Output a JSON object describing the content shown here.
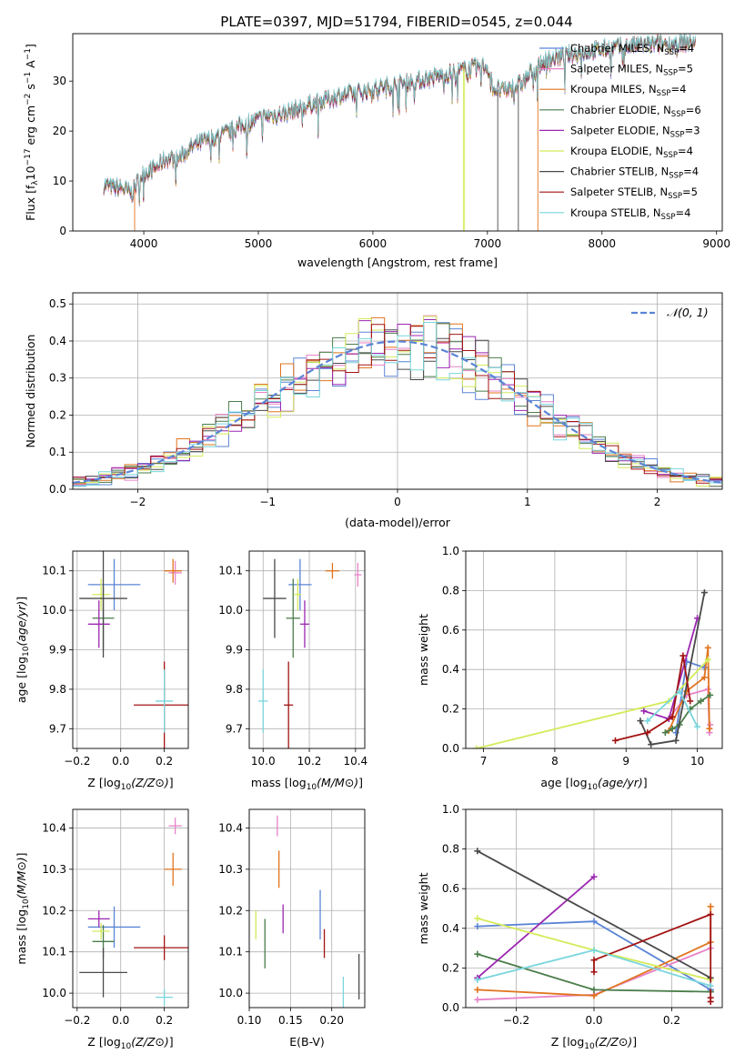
{
  "figure_title": "PLATE=0397, MJD=51794, FIBERID=0545, z=0.044",
  "colors": {
    "Chabrier MILES": "#5b84d6",
    "Salpeter MILES": "#e882c8",
    "Kroupa MILES": "#e0741e",
    "Chabrier ELODIE": "#4a7d4a",
    "Salpeter ELODIE": "#9b27b0",
    "Kroupa ELODIE": "#d4eb5a",
    "Chabrier STELIB": "#4a4a4a",
    "Salpeter STELIB": "#a31313",
    "Kroupa STELIB": "#79d6dc"
  },
  "chart_data": [
    {
      "id": "spectrum",
      "type": "line",
      "xlabel": "wavelength [Angstrom, rest frame]",
      "ylabel_parts": [
        "Flux [f",
        "λ",
        "10",
        "−17",
        " erg cm",
        "−2",
        " s",
        "−1",
        " A",
        "−1",
        "]"
      ],
      "xlim": [
        3380,
        9050
      ],
      "ylim": [
        0,
        39.5
      ],
      "xticks": [
        4000,
        5000,
        6000,
        7000,
        8000,
        9000
      ],
      "yticks": [
        0,
        10,
        20,
        30
      ],
      "legend_position": "upper right",
      "legend": [
        {
          "name": "Chabrier MILES",
          "label": "Chabrier MILES, N",
          "sub": "SSP",
          "suffix": "=4"
        },
        {
          "name": "Salpeter MILES",
          "label": "Salpeter MILES, N",
          "sub": "SSP",
          "suffix": "=5"
        },
        {
          "name": "Kroupa MILES",
          "label": "Kroupa MILES, N",
          "sub": "SSP",
          "suffix": "=4"
        },
        {
          "name": "Chabrier ELODIE",
          "label": "Chabrier ELODIE, N",
          "sub": "SSP",
          "suffix": "=6"
        },
        {
          "name": "Salpeter ELODIE",
          "label": "Salpeter ELODIE, N",
          "sub": "SSP",
          "suffix": "=3"
        },
        {
          "name": "Kroupa ELODIE",
          "label": "Kroupa ELODIE, N",
          "sub": "SSP",
          "suffix": "=4"
        },
        {
          "name": "Chabrier STELIB",
          "label": "Chabrier STELIB, N",
          "sub": "SSP",
          "suffix": "=4"
        },
        {
          "name": "Salpeter STELIB",
          "label": "Salpeter STELIB, N",
          "sub": "SSP",
          "suffix": "=5"
        },
        {
          "name": "Kroupa STELIB",
          "label": "Kroupa STELIB, N",
          "sub": "SSP",
          "suffix": "=4"
        }
      ],
      "continuum": [
        [
          3650,
          9.2
        ],
        [
          3700,
          8.8
        ],
        [
          3800,
          8.6
        ],
        [
          3900,
          7.5
        ],
        [
          3950,
          10.2
        ],
        [
          4000,
          11.6
        ],
        [
          4100,
          12.5
        ],
        [
          4200,
          14.6
        ],
        [
          4300,
          14.3
        ],
        [
          4400,
          16.6
        ],
        [
          4500,
          17.6
        ],
        [
          4600,
          18.6
        ],
        [
          4700,
          19.3
        ],
        [
          4800,
          20.4
        ],
        [
          4900,
          21.6
        ],
        [
          5000,
          22.3
        ],
        [
          5100,
          23.1
        ],
        [
          5200,
          23.4
        ],
        [
          5300,
          24.1
        ],
        [
          5400,
          24.9
        ],
        [
          5500,
          25.6
        ],
        [
          5600,
          26.3
        ],
        [
          5700,
          27.0
        ],
        [
          5800,
          27.4
        ],
        [
          5900,
          27.8
        ],
        [
          6000,
          28.3
        ],
        [
          6100,
          28.9
        ],
        [
          6200,
          29.2
        ],
        [
          6300,
          29.8
        ],
        [
          6400,
          30.1
        ],
        [
          6500,
          30.6
        ],
        [
          6600,
          31.2
        ],
        [
          6700,
          31.6
        ],
        [
          6800,
          32.2
        ],
        [
          6900,
          32.6
        ],
        [
          7000,
          33.0
        ],
        [
          7050,
          28.5
        ],
        [
          7150,
          28.0
        ],
        [
          7300,
          29.5
        ],
        [
          7400,
          32.2
        ],
        [
          7500,
          34.0
        ],
        [
          7700,
          35.2
        ],
        [
          7900,
          36.0
        ],
        [
          8100,
          36.6
        ],
        [
          8300,
          37.1
        ],
        [
          8500,
          37.4
        ],
        [
          8700,
          37.6
        ],
        [
          8820,
          37.8
        ]
      ],
      "gaps": [
        {
          "name": "Chabrier STELIB",
          "x": 7090,
          "drop_to": 0
        },
        {
          "name": "Chabrier STELIB",
          "x": 7270,
          "drop_to": 0
        },
        {
          "name": "Kroupa MILES",
          "x": 3920,
          "drop_to": 0
        },
        {
          "name": "Kroupa ELODIE",
          "x": 6800,
          "drop_to": 0
        },
        {
          "name": "Kroupa MILES",
          "x": 7440,
          "drop_to": 0
        },
        {
          "name": "Kroupa ELODIE",
          "x": 6790,
          "drop_to": 0
        }
      ]
    },
    {
      "id": "residuals",
      "type": "line",
      "xlabel": "(data-model)/error",
      "ylabel": "Normed distribution",
      "xlim": [
        -2.5,
        2.5
      ],
      "ylim": [
        0,
        0.53
      ],
      "xticks": [
        -2,
        -1,
        0,
        1,
        2
      ],
      "xtick_labels": [
        "−2",
        "−1",
        "0",
        "1",
        "2"
      ],
      "yticks": [
        0,
        0.1,
        0.2,
        0.3,
        0.4,
        0.5
      ],
      "ytick_labels": [
        "0.0",
        "0.1",
        "0.2",
        "0.3",
        "0.4",
        "0.5"
      ],
      "grid": true,
      "legend_position": "upper right",
      "normal_label": "𝒩(0, 1)",
      "normal_color": "#5b84d6",
      "bin_width": 0.1
    },
    {
      "id": "age_vs_Z",
      "type": "scatter",
      "xlabel": "Z [log10(Z/Z⊙)]",
      "ylabel": "age [log10(age/yr)]",
      "xlim": [
        -0.22,
        0.31
      ],
      "ylim": [
        9.65,
        10.15
      ],
      "xticks": [
        -0.2,
        0.0,
        0.2
      ],
      "xtick_labels": [
        "−0.2",
        "0.0",
        "0.2"
      ],
      "yticks": [
        9.7,
        9.8,
        9.9,
        10.0,
        10.1
      ],
      "ytick_labels": [
        "9.7",
        "9.8",
        "9.9",
        "10.0",
        "10.1"
      ],
      "grid": true,
      "points": [
        {
          "name": "Chabrier MILES",
          "x": -0.03,
          "y": 10.065,
          "xerr": 0.12,
          "yerr": 0.065
        },
        {
          "name": "Salpeter MILES",
          "x": 0.25,
          "y": 10.095,
          "xerr": 0.03,
          "yerr": 0.03
        },
        {
          "name": "Kroupa MILES",
          "x": 0.24,
          "y": 10.1,
          "xerr": 0.04,
          "yerr": 0.03
        },
        {
          "name": "Chabrier ELODIE",
          "x": -0.08,
          "y": 9.98,
          "xerr": 0.05,
          "yerr": 0.08
        },
        {
          "name": "Salpeter ELODIE",
          "x": -0.1,
          "y": 9.965,
          "xerr": 0.05,
          "yerr": 0.06
        },
        {
          "name": "Kroupa ELODIE",
          "x": -0.09,
          "y": 10.04,
          "xerr": 0.04,
          "yerr": 0.04
        },
        {
          "name": "Chabrier STELIB",
          "x": -0.08,
          "y": 10.03,
          "xerr": 0.11,
          "yerr": 0.15
        },
        {
          "name": "Salpeter STELIB",
          "x": 0.2,
          "y": 9.76,
          "xerr": 0.14,
          "yerr": 0.11
        },
        {
          "name": "Kroupa STELIB",
          "x": 0.2,
          "y": 9.77,
          "xerr": 0.04,
          "yerr": 0.08
        }
      ]
    },
    {
      "id": "age_vs_mass",
      "type": "scatter",
      "xlabel": "mass [log10(M/M⊙)]",
      "ylabel": "",
      "xlim": [
        9.94,
        10.44
      ],
      "ylim": [
        9.65,
        10.15
      ],
      "xticks": [
        10.0,
        10.2,
        10.4
      ],
      "xtick_labels": [
        "10.0",
        "10.2",
        "10.4"
      ],
      "yticks": [
        9.7,
        9.8,
        9.9,
        10.0,
        10.1
      ],
      "ytick_labels": [
        "9.7",
        "9.8",
        "9.9",
        "10.0",
        "10.1"
      ],
      "grid": true,
      "points": [
        {
          "name": "Chabrier MILES",
          "x": 10.16,
          "y": 10.065,
          "xerr": 0.05,
          "yerr": 0.065
        },
        {
          "name": "Salpeter MILES",
          "x": 10.41,
          "y": 10.09,
          "xerr": 0.015,
          "yerr": 0.03
        },
        {
          "name": "Kroupa MILES",
          "x": 10.3,
          "y": 10.1,
          "xerr": 0.03,
          "yerr": 0.02
        },
        {
          "name": "Chabrier ELODIE",
          "x": 10.13,
          "y": 9.98,
          "xerr": 0.03,
          "yerr": 0.1
        },
        {
          "name": "Salpeter ELODIE",
          "x": 10.18,
          "y": 9.965,
          "xerr": 0.02,
          "yerr": 0.06
        },
        {
          "name": "Kroupa ELODIE",
          "x": 10.15,
          "y": 10.04,
          "xerr": 0.015,
          "yerr": 0.04
        },
        {
          "name": "Chabrier STELIB",
          "x": 10.05,
          "y": 10.03,
          "xerr": 0.05,
          "yerr": 0.1
        },
        {
          "name": "Salpeter STELIB",
          "x": 10.11,
          "y": 9.76,
          "xerr": 0.02,
          "yerr": 0.11
        },
        {
          "name": "Kroupa STELIB",
          "x": 10.0,
          "y": 9.77,
          "xerr": 0.02,
          "yerr": 0.08
        }
      ]
    },
    {
      "id": "weight_vs_age",
      "type": "line",
      "xlabel": "age [log10(age/yr)]",
      "ylabel": "mass weight",
      "xlim": [
        6.75,
        10.35
      ],
      "ylim": [
        0,
        1.0
      ],
      "xticks": [
        7,
        8,
        9,
        10
      ],
      "yticks": [
        0,
        0.2,
        0.4,
        0.6,
        0.8,
        1.0
      ],
      "ytick_labels": [
        "0.0",
        "0.2",
        "0.4",
        "0.6",
        "0.8",
        "1.0"
      ],
      "grid": true,
      "series": [
        {
          "name": "Chabrier MILES",
          "x": [
            9.7,
            9.85,
            10.1
          ],
          "y": [
            0.08,
            0.44,
            0.41
          ]
        },
        {
          "name": "Salpeter MILES",
          "x": [
            9.6,
            9.85,
            10.15,
            10.17,
            10.18
          ],
          "y": [
            0.15,
            0.27,
            0.3,
            0.08,
            0.12
          ]
        },
        {
          "name": "Kroupa MILES",
          "x": [
            9.6,
            9.85,
            10.1,
            10.15,
            10.17
          ],
          "y": [
            0.09,
            0.29,
            0.36,
            0.51,
            0.1
          ]
        },
        {
          "name": "Chabrier ELODIE",
          "x": [
            9.55,
            9.65,
            9.75,
            9.9,
            10.05,
            10.18
          ],
          "y": [
            0.08,
            0.1,
            0.12,
            0.2,
            0.24,
            0.27
          ]
        },
        {
          "name": "Salpeter ELODIE",
          "x": [
            9.25,
            9.6,
            10.0
          ],
          "y": [
            0.19,
            0.15,
            0.66
          ]
        },
        {
          "name": "Kroupa ELODIE",
          "x": [
            6.9,
            9.6,
            10.15
          ],
          "y": [
            0.0,
            0.24,
            0.45
          ]
        },
        {
          "name": "Chabrier STELIB",
          "x": [
            9.2,
            9.35,
            9.7,
            10.1
          ],
          "y": [
            0.14,
            0.02,
            0.04,
            0.79
          ]
        },
        {
          "name": "Salpeter STELIB",
          "x": [
            8.85,
            9.3,
            9.65,
            9.8,
            9.9
          ],
          "y": [
            0.04,
            0.08,
            0.16,
            0.47,
            0.24
          ]
        },
        {
          "name": "Kroupa STELIB",
          "x": [
            9.3,
            9.75,
            10.0
          ],
          "y": [
            0.14,
            0.29,
            0.11
          ]
        }
      ]
    },
    {
      "id": "mass_vs_Z",
      "type": "scatter",
      "xlabel": "Z [log10(Z/Z⊙)]",
      "ylabel": "mass [log10(M/M⊙)]",
      "xlim": [
        -0.22,
        0.31
      ],
      "ylim": [
        9.965,
        10.445
      ],
      "xticks": [
        -0.2,
        0.0,
        0.2
      ],
      "xtick_labels": [
        "−0.2",
        "0.0",
        "0.2"
      ],
      "yticks": [
        10.0,
        10.1,
        10.2,
        10.3,
        10.4
      ],
      "ytick_labels": [
        "10.0",
        "10.1",
        "10.2",
        "10.3",
        "10.4"
      ],
      "grid": true,
      "points": [
        {
          "name": "Chabrier MILES",
          "x": -0.03,
          "y": 10.16,
          "xerr": 0.12,
          "yerr": 0.05
        },
        {
          "name": "Salpeter MILES",
          "x": 0.25,
          "y": 10.405,
          "xerr": 0.03,
          "yerr": 0.02
        },
        {
          "name": "Kroupa MILES",
          "x": 0.24,
          "y": 10.3,
          "xerr": 0.04,
          "yerr": 0.04
        },
        {
          "name": "Chabrier ELODIE",
          "x": -0.08,
          "y": 10.125,
          "xerr": 0.05,
          "yerr": 0.04
        },
        {
          "name": "Salpeter ELODIE",
          "x": -0.1,
          "y": 10.18,
          "xerr": 0.05,
          "yerr": 0.02
        },
        {
          "name": "Kroupa ELODIE",
          "x": -0.09,
          "y": 10.15,
          "xerr": 0.04,
          "yerr": 0.02
        },
        {
          "name": "Chabrier STELIB",
          "x": -0.08,
          "y": 10.05,
          "xerr": 0.11,
          "yerr": 0.06
        },
        {
          "name": "Salpeter STELIB",
          "x": 0.2,
          "y": 10.11,
          "xerr": 0.14,
          "yerr": 0.03
        },
        {
          "name": "Kroupa STELIB",
          "x": 0.2,
          "y": 9.99,
          "xerr": 0.04,
          "yerr": 0.02
        }
      ]
    },
    {
      "id": "mass_vs_ebv",
      "type": "scatter",
      "xlabel": "E(B-V)",
      "ylabel": "",
      "xlim": [
        0.1,
        0.24
      ],
      "ylim": [
        9.965,
        10.445
      ],
      "xticks": [
        0.1,
        0.15,
        0.2
      ],
      "xtick_labels": [
        "0.10",
        "0.15",
        "0.20"
      ],
      "yticks": [
        10.0,
        10.1,
        10.2,
        10.3,
        10.4
      ],
      "ytick_labels": [
        "10.0",
        "10.1",
        "10.2",
        "10.3",
        "10.4"
      ],
      "grid": true,
      "points": [
        {
          "name": "Chabrier MILES",
          "x": 0.186,
          "y": 10.19,
          "xerr": 0,
          "yerr": 0.06
        },
        {
          "name": "Salpeter MILES",
          "x": 0.134,
          "y": 10.405,
          "xerr": 0,
          "yerr": 0.025
        },
        {
          "name": "Kroupa MILES",
          "x": 0.136,
          "y": 10.3,
          "xerr": 0,
          "yerr": 0.045
        },
        {
          "name": "Chabrier ELODIE",
          "x": 0.119,
          "y": 10.12,
          "xerr": 0,
          "yerr": 0.06
        },
        {
          "name": "Salpeter ELODIE",
          "x": 0.141,
          "y": 10.18,
          "xerr": 0,
          "yerr": 0.035
        },
        {
          "name": "Kroupa ELODIE",
          "x": 0.108,
          "y": 10.165,
          "xerr": 0,
          "yerr": 0.035
        },
        {
          "name": "Chabrier STELIB",
          "x": 0.233,
          "y": 10.04,
          "xerr": 0,
          "yerr": 0.055
        },
        {
          "name": "Salpeter STELIB",
          "x": 0.191,
          "y": 10.12,
          "xerr": 0,
          "yerr": 0.035
        },
        {
          "name": "Kroupa STELIB",
          "x": 0.214,
          "y": 10.0,
          "xerr": 0,
          "yerr": 0.04
        }
      ]
    },
    {
      "id": "weight_vs_Z",
      "type": "line",
      "xlabel": "Z [log10(Z/Z⊙)]",
      "ylabel": "mass weight",
      "xlim": [
        -0.33,
        0.33
      ],
      "ylim": [
        0,
        1.0
      ],
      "xticks": [
        -0.2,
        0.0,
        0.2
      ],
      "xtick_labels": [
        "−0.2",
        "0.0",
        "0.2"
      ],
      "yticks": [
        0,
        0.2,
        0.4,
        0.6,
        0.8,
        1.0
      ],
      "ytick_labels": [
        "0.0",
        "0.2",
        "0.4",
        "0.6",
        "0.8",
        "1.0"
      ],
      "grid": true,
      "series": [
        {
          "name": "Chabrier MILES",
          "x": [
            -0.3,
            0.0,
            0.3,
            0.3
          ],
          "y": [
            0.41,
            0.435,
            0.09,
            0.08
          ]
        },
        {
          "name": "Salpeter MILES",
          "x": [
            -0.3,
            0.0,
            0.3
          ],
          "y": [
            0.04,
            0.065,
            0.3
          ]
        },
        {
          "name": "Kroupa MILES",
          "x": [
            -0.3,
            0.0,
            0.3,
            0.3
          ],
          "y": [
            0.09,
            0.06,
            0.33,
            0.51
          ]
        },
        {
          "name": "Chabrier ELODIE",
          "x": [
            -0.3,
            0.0,
            0.3,
            0.3
          ],
          "y": [
            0.27,
            0.09,
            0.08,
            0.08
          ]
        },
        {
          "name": "Salpeter ELODIE",
          "x": [
            -0.3,
            0.0
          ],
          "y": [
            0.15,
            0.66
          ]
        },
        {
          "name": "Kroupa ELODIE",
          "x": [
            -0.3,
            0.0,
            0.3
          ],
          "y": [
            0.45,
            0.29,
            0.14
          ]
        },
        {
          "name": "Chabrier STELIB",
          "x": [
            -0.3,
            0.3
          ],
          "y": [
            0.79,
            0.15
          ]
        },
        {
          "name": "Salpeter STELIB",
          "x": [
            0.0,
            0.0,
            0.3,
            0.3,
            0.3
          ],
          "y": [
            0.18,
            0.24,
            0.47,
            0.05,
            0.03
          ]
        },
        {
          "name": "Kroupa STELIB",
          "x": [
            -0.3,
            0.0,
            0.3
          ],
          "y": [
            0.14,
            0.29,
            0.11
          ]
        }
      ]
    }
  ]
}
